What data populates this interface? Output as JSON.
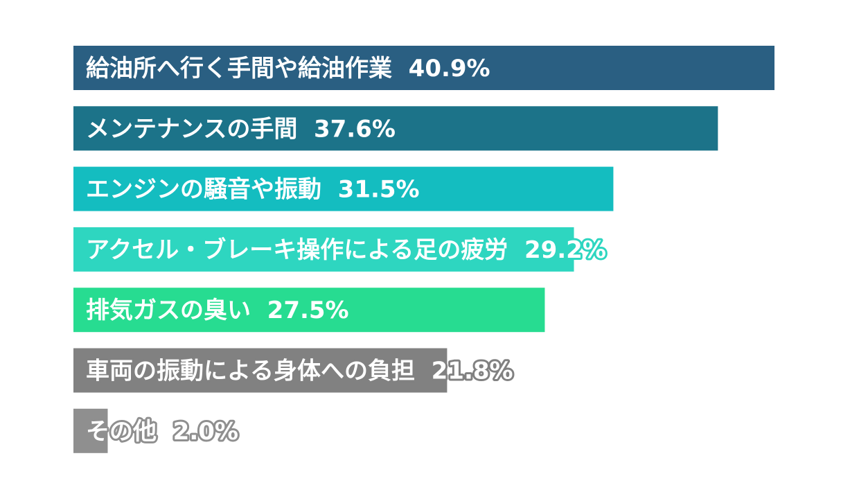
{
  "chart_data": {
    "type": "bar",
    "orientation": "horizontal",
    "title": "",
    "xlabel": "",
    "ylabel": "",
    "unit": "%",
    "xlim": [
      0,
      40.9
    ],
    "grid": false,
    "legend": "none",
    "categories": [
      "給油所へ行く手間や給油作業",
      "メンテナンスの手間",
      "エンジンの騒音や振動",
      "アクセル・ブレーキ操作による足の疲労",
      "排気ガスの臭い",
      "車両の振動による身体への負担",
      "その他"
    ],
    "values": [
      40.9,
      37.6,
      31.5,
      29.2,
      27.5,
      21.8,
      2.0
    ],
    "value_labels": [
      "40.9%",
      "37.6%",
      "31.5%",
      "29.2%",
      "27.5%",
      "21.8%",
      "2.0%"
    ],
    "colors": [
      "#2a5f82",
      "#1c7389",
      "#14bdc0",
      "#2ed6c0",
      "#27dc91",
      "#818181",
      "#8f8f8f"
    ],
    "label_colors": [
      "#ffffff",
      "#ffffff",
      "#ffffff",
      "#ffffff",
      "#ffffff",
      "#ffffff",
      "#ffffff"
    ],
    "outline_colors": [
      "",
      "",
      "",
      "#2ed6c0",
      "",
      "#818181",
      "#8f8f8f"
    ]
  }
}
